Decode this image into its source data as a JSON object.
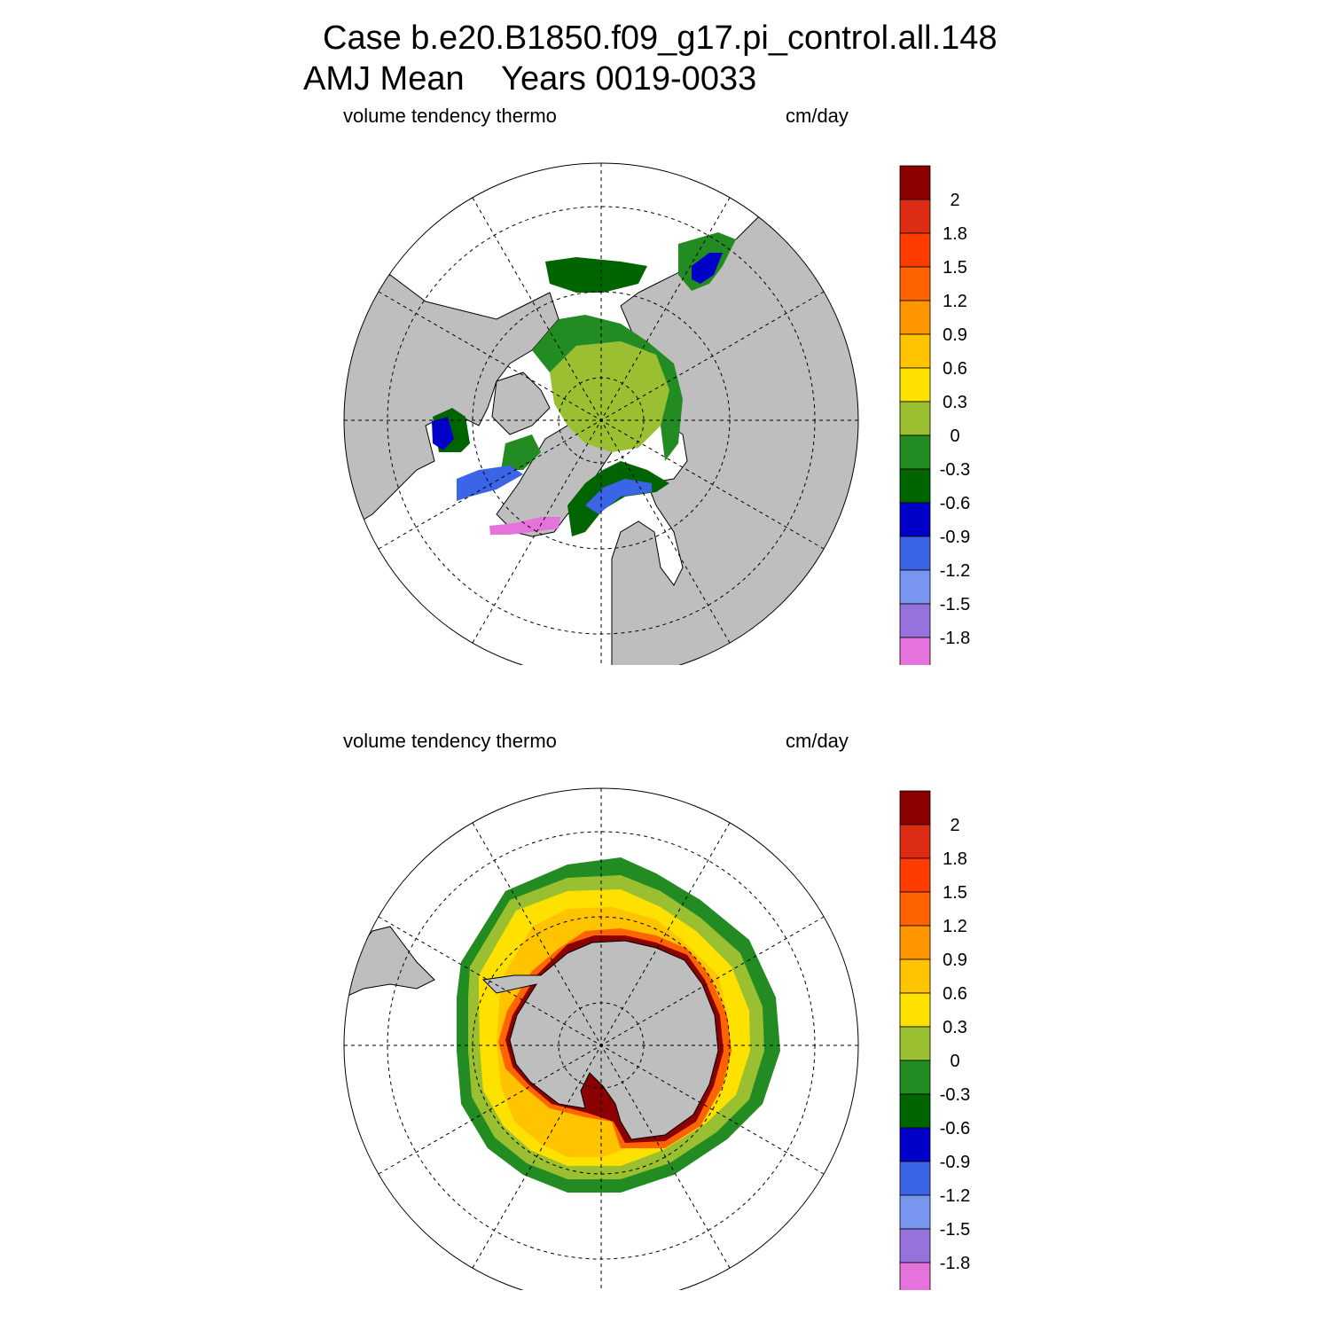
{
  "title": {
    "line1": "Case b.e20.B1850.f09_g17.pi_control.all.148",
    "line2": "AMJ Mean    Years 0019-0033"
  },
  "panels": [
    {
      "id": "north",
      "left_label": "volume tendency thermo",
      "right_label": "cm/day"
    },
    {
      "id": "south",
      "left_label": "volume tendency thermo",
      "right_label": "cm/day"
    }
  ],
  "colorbar": {
    "levels": [
      "2",
      "1.8",
      "1.5",
      "1.2",
      "0.9",
      "0.6",
      "0.3",
      "0",
      "-0.3",
      "-0.6",
      "-0.9",
      "-1.2",
      "-1.5",
      "-1.8"
    ],
    "colors": [
      "#8b0000",
      "#dc2d14",
      "#ff3c00",
      "#ff6400",
      "#ff9600",
      "#ffc300",
      "#ffe100",
      "#9ac032",
      "#228b22",
      "#006400",
      "#0000c8",
      "#3c64e6",
      "#7896f0",
      "#9673dc",
      "#e673dc"
    ]
  },
  "map_colors": {
    "land": "#bebebe",
    "ocean": "#ffffff",
    "grid": "#000000"
  }
}
